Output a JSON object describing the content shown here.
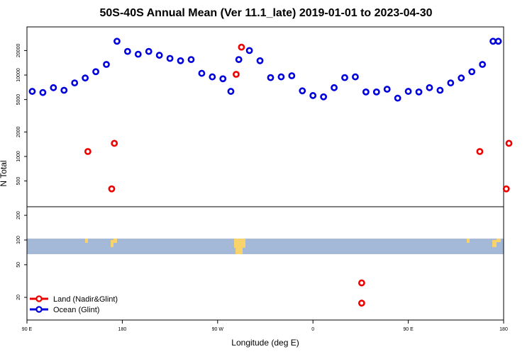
{
  "chart_data": {
    "type": "scatter",
    "title": "50S-40S Annual Mean (Ver 11.1_late)   2019-01-01 to 2023-04-30",
    "xlabel": "Longitude (deg E)",
    "ylabel": "N Total",
    "x_ticks": [
      "90 E",
      "180",
      "90 W",
      "0",
      "90 E",
      "180"
    ],
    "y_ticks_upper": [
      "500",
      "1000",
      "2000",
      "5000",
      "10000",
      "20000"
    ],
    "y_ticks_lower": [
      "20",
      "50",
      "100",
      "200"
    ],
    "log_scale": true,
    "legend": {
      "placement": "bottom-left",
      "entries": [
        "Land (Nadir&Glint)",
        "Ocean (Glint)"
      ]
    },
    "colors": {
      "land": "#ee0000",
      "ocean": "#0000dd",
      "ocean_band": "#a4b9d8",
      "land_mask": "#f8d36c"
    },
    "series": [
      {
        "name": "Ocean (Glint)",
        "x": [
          95,
          105,
          115,
          125,
          135,
          145,
          155,
          165,
          175,
          185,
          195,
          205,
          215,
          225,
          235,
          245,
          255,
          265,
          275,
          282.5,
          290,
          300,
          310,
          320,
          330,
          340,
          350,
          360,
          370,
          380,
          390,
          400,
          410,
          420,
          430,
          440,
          450,
          460,
          470,
          480,
          490,
          500,
          510,
          520,
          530,
          535
        ],
        "y": [
          6300,
          6100,
          7000,
          6500,
          8000,
          9200,
          11000,
          13500,
          26000,
          19500,
          18000,
          19500,
          17500,
          16000,
          15000,
          15500,
          10500,
          9500,
          9000,
          6300,
          15500,
          20000,
          15000,
          9300,
          9500,
          9800,
          6400,
          5600,
          5400,
          7000,
          9300,
          9500,
          6200,
          6200,
          6700,
          5200,
          6300,
          6200,
          7000,
          6500,
          8000,
          9200,
          11000,
          13500,
          26000,
          26000
        ]
      },
      {
        "name": "Land (Nadir&Glint)",
        "x": [
          147.5,
          170,
          172.5,
          287.5,
          292.5,
          517.5,
          542.5,
          545
        ],
        "y": [
          1150,
          400,
          1450,
          10200,
          22000,
          1150,
          400,
          1450
        ]
      },
      {
        "name": "Land (Nadir&Glint)",
        "x": [
          406,
          406
        ],
        "y": [
          30,
          17
        ]
      }
    ]
  }
}
